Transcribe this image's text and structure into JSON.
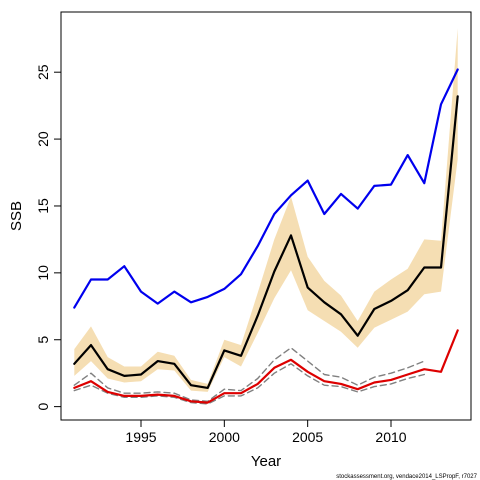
{
  "chart_data": {
    "type": "line",
    "xlabel": "Year",
    "ylabel": "SSB",
    "xlim": [
      1990.2,
      2014.8
    ],
    "ylim": [
      -1.0,
      29.5
    ],
    "xticks": [
      1995,
      2000,
      2005,
      2010
    ],
    "yticks": [
      0,
      5,
      10,
      15,
      20,
      25
    ],
    "grid": false,
    "footnote": "stockassessment.org, vendace2014_LSPropF, r7027",
    "x": [
      1991,
      1992,
      1993,
      1994,
      1995,
      1996,
      1997,
      1998,
      1999,
      2000,
      2001,
      2002,
      2003,
      2004,
      2005,
      2006,
      2007,
      2008,
      2009,
      2010,
      2011,
      2012,
      2013,
      2014
    ],
    "band": {
      "color": "#f5deb3",
      "upper": [
        4.3,
        6.0,
        3.7,
        3.0,
        3.0,
        4.1,
        3.8,
        2.0,
        1.7,
        5.0,
        4.6,
        8.5,
        12.5,
        15.7,
        11.2,
        9.4,
        8.3,
        6.4,
        8.6,
        9.5,
        10.3,
        12.5,
        12.4,
        28.3
      ],
      "lower": [
        2.3,
        3.4,
        2.1,
        1.8,
        1.9,
        2.8,
        2.7,
        1.2,
        1.1,
        3.7,
        3.0,
        5.5,
        8.1,
        10.2,
        7.2,
        6.4,
        5.6,
        4.4,
        5.9,
        6.5,
        7.1,
        8.4,
        8.6,
        18.5
      ]
    },
    "series": [
      {
        "color": "#0000ee",
        "dash": "",
        "width": 2.2,
        "values": [
          7.4,
          9.5,
          9.5,
          10.5,
          8.6,
          7.7,
          8.6,
          7.8,
          8.2,
          8.8,
          9.9,
          12.0,
          14.4,
          15.8,
          16.9,
          14.4,
          15.9,
          14.8,
          16.5,
          16.6,
          18.8,
          16.7,
          22.6,
          25.2
        ]
      },
      {
        "color": "#000000",
        "dash": "",
        "width": 2.2,
        "values": [
          3.2,
          4.6,
          2.8,
          2.3,
          2.4,
          3.4,
          3.2,
          1.6,
          1.4,
          4.2,
          3.8,
          6.8,
          10.1,
          12.8,
          8.9,
          7.8,
          6.9,
          5.3,
          7.3,
          7.9,
          8.7,
          10.4,
          10.4,
          23.2
        ]
      },
      {
        "color": "#808080",
        "dash": "6,4",
        "width": 1.4,
        "values": [
          1.6,
          2.5,
          1.4,
          1.0,
          1.0,
          1.1,
          1.0,
          0.5,
          0.4,
          1.3,
          1.2,
          2.1,
          3.5,
          4.4,
          3.4,
          2.4,
          2.2,
          1.6,
          2.2,
          2.5,
          2.9,
          3.4,
          null,
          null
        ]
      },
      {
        "color": "#808080",
        "dash": "6,4",
        "width": 1.4,
        "values": [
          1.2,
          1.6,
          1.0,
          0.7,
          0.7,
          0.8,
          0.7,
          0.3,
          0.2,
          0.8,
          0.8,
          1.4,
          2.5,
          3.2,
          2.3,
          1.6,
          1.5,
          1.1,
          1.5,
          1.7,
          2.1,
          2.4,
          null,
          null
        ]
      },
      {
        "color": "#dd0000",
        "dash": "",
        "width": 2.2,
        "values": [
          1.4,
          1.9,
          1.1,
          0.8,
          0.8,
          0.9,
          0.8,
          0.4,
          0.3,
          1.0,
          1.0,
          1.7,
          2.9,
          3.5,
          2.6,
          1.9,
          1.7,
          1.3,
          1.8,
          2.0,
          2.4,
          2.8,
          2.6,
          5.7
        ]
      }
    ]
  }
}
